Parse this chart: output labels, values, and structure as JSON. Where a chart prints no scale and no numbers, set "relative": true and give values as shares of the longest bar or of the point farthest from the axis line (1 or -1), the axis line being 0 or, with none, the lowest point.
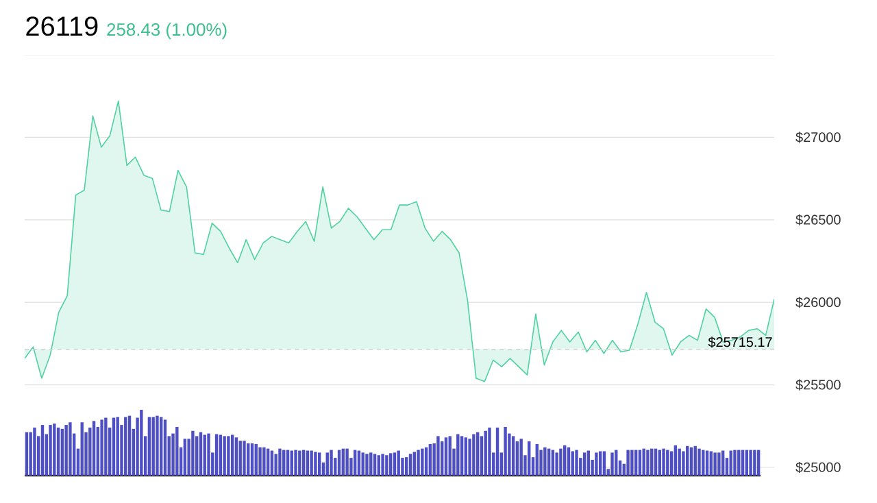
{
  "chart_data": [
    {
      "type": "area",
      "title": "26119",
      "subtitle": "258.43 (1.00%)",
      "categories": [
        null,
        null,
        null,
        null,
        null,
        null,
        null,
        null,
        null,
        null,
        null,
        null,
        null,
        null,
        null,
        null,
        null,
        null,
        null,
        null,
        null,
        null,
        null,
        null,
        null,
        null,
        null,
        null,
        null,
        null,
        null,
        null,
        null,
        null,
        null,
        null,
        null,
        null,
        null,
        null,
        null,
        null,
        null,
        null,
        null,
        null,
        null,
        null,
        null,
        null,
        null,
        null,
        null,
        null,
        null,
        null,
        null,
        null,
        null,
        null,
        null,
        null,
        null,
        null,
        null,
        null,
        null,
        null,
        null,
        null,
        null,
        null,
        null,
        null,
        null,
        null,
        null,
        null,
        null,
        null,
        null,
        null,
        null,
        null,
        null,
        null,
        null,
        null,
        null
      ],
      "series": [
        {
          "color": "#4fd1a0",
          "values": [
            25660,
            25730,
            25540,
            25680,
            25940,
            26040,
            26650,
            26680,
            27130,
            26940,
            27010,
            27220,
            26830,
            26880,
            26770,
            26750,
            26560,
            26550,
            26800,
            26700,
            26300,
            26290,
            26480,
            26430,
            26330,
            26240,
            26380,
            26260,
            26360,
            26400,
            26380,
            26360,
            26430,
            26490,
            26370,
            26700,
            26450,
            26490,
            26570,
            26520,
            26450,
            26380,
            26440,
            26440,
            26590,
            26590,
            26610,
            26450,
            26370,
            26430,
            26380,
            26300,
            26010,
            25540,
            25520,
            25650,
            25610,
            25660,
            25610,
            25560,
            25930,
            25620,
            25760,
            25830,
            25760,
            25820,
            25700,
            25770,
            25690,
            25770,
            25700,
            25710,
            25870,
            26060,
            25880,
            25840,
            25680,
            25760,
            25800,
            25770,
            25960,
            25910,
            25760,
            25770,
            25790,
            25830,
            25840,
            25800,
            26020
          ]
        }
      ],
      "ylim": [
        25000,
        27500
      ],
      "yticks": [
        {
          "value": 25000,
          "label": "$25000"
        },
        {
          "value": 25500,
          "label": "$25500"
        },
        {
          "value": 26000,
          "label": "$26000"
        },
        {
          "value": 26500,
          "label": "$26500"
        },
        {
          "value": 27000,
          "label": "$27000"
        }
      ],
      "grid": "y",
      "tick_labels": "y",
      "ref_lines": [
        {
          "axis": "y",
          "value": 25715.17,
          "label": "$25715.17",
          "color": "#d0d0d0",
          "line_style": "dashed"
        }
      ]
    },
    {
      "type": "bar",
      "relative": true,
      "color": "#4f4fc4",
      "categories": [
        null,
        null,
        null,
        null,
        null,
        null,
        null,
        null,
        null,
        null,
        null,
        null,
        null,
        null,
        null,
        null,
        null,
        null,
        null,
        null,
        null,
        null,
        null,
        null,
        null,
        null,
        null,
        null,
        null,
        null,
        null,
        null,
        null,
        null,
        null,
        null,
        null,
        null,
        null,
        null,
        null,
        null,
        null,
        null,
        null,
        null,
        null,
        null,
        null,
        null,
        null,
        null,
        null,
        null,
        null,
        null,
        null,
        null,
        null,
        null,
        null,
        null,
        null,
        null,
        null,
        null,
        null,
        null,
        null,
        null,
        null,
        null,
        null,
        null,
        null,
        null,
        null,
        null,
        null,
        null,
        null,
        null,
        null,
        null,
        null,
        null,
        null,
        null,
        null,
        null,
        null,
        null,
        null,
        null,
        null,
        null,
        null,
        null,
        null,
        null,
        null,
        null,
        null,
        null,
        null,
        null,
        null,
        null,
        null,
        null,
        null,
        null,
        null,
        null,
        null,
        null,
        null,
        null,
        null,
        null,
        null,
        null,
        null,
        null,
        null,
        null,
        null,
        null,
        null,
        null,
        null,
        null,
        null,
        null,
        null,
        null,
        null,
        null,
        null,
        null,
        null,
        null,
        null,
        null,
        null,
        null,
        null,
        null,
        null,
        null,
        null,
        null,
        null,
        null,
        null,
        null,
        null,
        null,
        null,
        null,
        null,
        null,
        null,
        null,
        null,
        null,
        null,
        null,
        null,
        null,
        null,
        null,
        null,
        null,
        null,
        null,
        null,
        null,
        null,
        null,
        null,
        null,
        null,
        null,
        null,
        null
      ],
      "values": [
        0.66,
        0.66,
        0.73,
        0.6,
        0.77,
        0.63,
        0.77,
        0.79,
        0.73,
        0.71,
        0.77,
        0.81,
        0.64,
        0.41,
        0.81,
        0.66,
        0.73,
        0.83,
        0.74,
        0.85,
        0.88,
        0.73,
        0.88,
        0.89,
        0.77,
        0.89,
        0.91,
        0.71,
        0.88,
        1,
        0.6,
        0.89,
        0.89,
        0.91,
        0.89,
        0.85,
        0.6,
        0.64,
        0.74,
        0.43,
        0.56,
        0.56,
        0.68,
        0.6,
        0.66,
        0.62,
        0.64,
        0.35,
        0.63,
        0.62,
        0.6,
        0.6,
        0.62,
        0.58,
        0.53,
        0.53,
        0.49,
        0.49,
        0.48,
        0.43,
        0.43,
        0.41,
        0.38,
        0.33,
        0.41,
        0.39,
        0.39,
        0.38,
        0.39,
        0.38,
        0.39,
        0.38,
        0.38,
        0.36,
        0.35,
        0.2,
        0.35,
        0.39,
        0.27,
        0.39,
        0.41,
        0.41,
        0.27,
        0.39,
        0.38,
        0.35,
        0.33,
        0.35,
        0.33,
        0.31,
        0.33,
        0.31,
        0.34,
        0.35,
        0.38,
        0.27,
        0.28,
        0.33,
        0.36,
        0.39,
        0.41,
        0.43,
        0.48,
        0.49,
        0.6,
        0.52,
        0.58,
        0.6,
        0.41,
        0.63,
        0.6,
        0.58,
        0.56,
        0.63,
        0.66,
        0.6,
        0.68,
        0.73,
        0.35,
        0.73,
        0.35,
        0.74,
        0.64,
        0.6,
        0.52,
        0.56,
        0.31,
        0.52,
        0.28,
        0.48,
        0.39,
        0.43,
        0.41,
        0.39,
        0.35,
        0.41,
        0.46,
        0.43,
        0.37,
        0.39,
        0.27,
        0.35,
        0.38,
        0.24,
        0.35,
        0.37,
        0.37,
        0.1,
        0.35,
        0.39,
        0.23,
        0.18,
        0.39,
        0.39,
        0.39,
        0.39,
        0.41,
        0.39,
        0.41,
        0.41,
        0.39,
        0.41,
        0.39,
        0.37,
        0.46,
        0.41,
        0.37,
        0.45,
        0.43,
        0.45,
        0.41,
        0.39,
        0.38,
        0.37,
        0.35,
        0.35,
        0.38,
        0.27,
        0.38,
        0.39,
        0.39,
        0.39,
        0.39,
        0.39,
        0.39,
        0.39
      ]
    }
  ]
}
